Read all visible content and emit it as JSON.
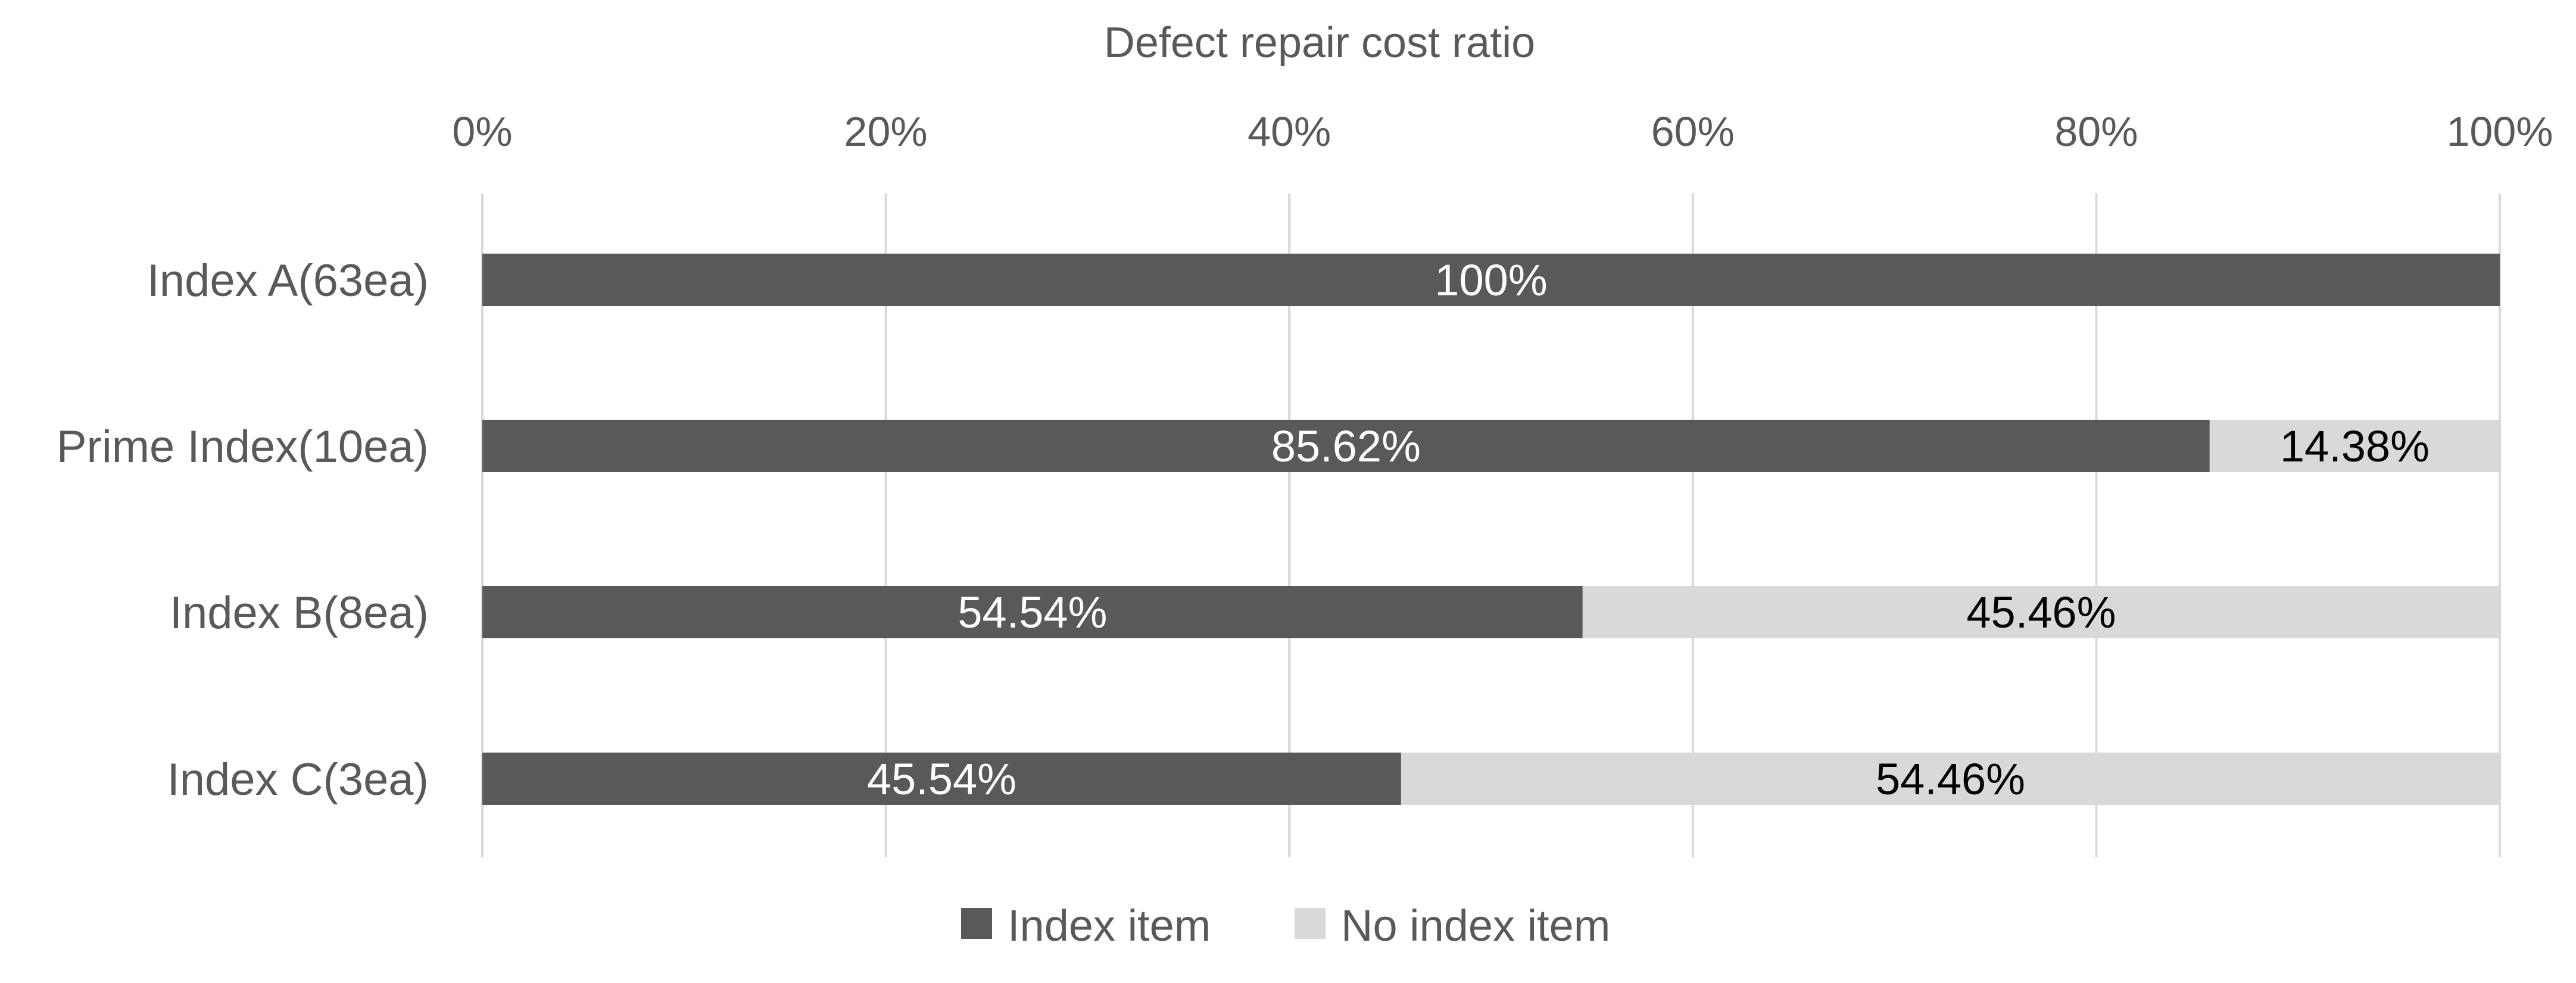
{
  "chart_data": {
    "type": "bar",
    "orientation": "horizontal",
    "stacked": "100%",
    "title": "",
    "xlabel": "Defect repair cost ratio",
    "ylabel": "",
    "xlim": [
      0,
      100
    ],
    "x_ticks": [
      "0%",
      "20%",
      "40%",
      "60%",
      "80%",
      "100%"
    ],
    "grid": "vertical",
    "legend_position": "bottom",
    "categories": [
      "Index A(63ea)",
      "Prime Index(10ea)",
      "Index B(8ea)",
      "Index C(3ea)"
    ],
    "series": [
      {
        "name": "Index item",
        "color": "#595959",
        "label_color": "#ffffff",
        "values": [
          100,
          85.62,
          54.54,
          45.54
        ],
        "labels": [
          "100%",
          "85.62%",
          "54.54%",
          "45.54%"
        ]
      },
      {
        "name": "No index item",
        "color": "#d9d9d9",
        "label_color": "#000000",
        "values": [
          0,
          14.38,
          45.46,
          54.46
        ],
        "labels": [
          "",
          "14.38%",
          "45.46%",
          "54.46%"
        ]
      }
    ]
  }
}
